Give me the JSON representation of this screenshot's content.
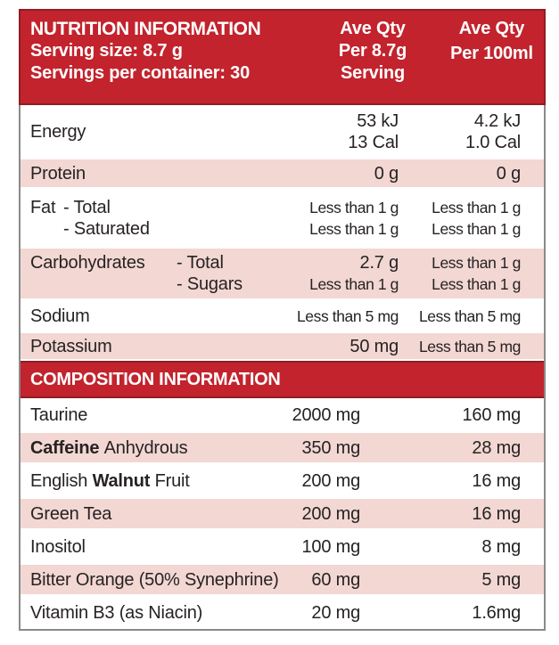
{
  "colors": {
    "red": "#c2232d",
    "red_dark": "#8e1e26",
    "pink": "#f2d7d3",
    "text": "#272223",
    "border_gray": "#8a8a8a"
  },
  "header": {
    "title": "NUTRITION INFORMATION",
    "serving_size": "Serving size: 8.7 g",
    "servings_per_container": "Servings per container: 30",
    "per_serving_heading": [
      "Ave Qty",
      "Per 8.7g",
      "Serving"
    ],
    "per_100ml_heading": [
      "Ave Qty",
      "Per 100ml"
    ]
  },
  "nutrition_rows": [
    {
      "label": "Energy",
      "per_serving": [
        "53 kJ",
        "13 Cal"
      ],
      "per_100ml": [
        "4.2 kJ",
        "1.0 Cal"
      ],
      "bg": "white"
    },
    {
      "label": "Protein",
      "per_serving": [
        "0 g"
      ],
      "per_100ml": [
        "0 g"
      ],
      "bg": "pink"
    },
    {
      "label": "Fat",
      "sublabels": [
        "- Total",
        "- Saturated"
      ],
      "indent": "near",
      "per_serving": [
        "Less than 1 g",
        "Less than 1 g"
      ],
      "per_100ml": [
        "Less than 1 g",
        "Less than 1 g"
      ],
      "bg": "white"
    },
    {
      "label": "Carbohydrates",
      "sublabels": [
        "- Total",
        "- Sugars"
      ],
      "indent": "far",
      "per_serving": [
        "2.7 g",
        "Less than 1 g"
      ],
      "per_100ml": [
        "Less than 1 g",
        "Less than 1 g"
      ],
      "bg": "pink"
    },
    {
      "label": "Sodium",
      "per_serving": [
        "Less than 5 mg"
      ],
      "per_100ml": [
        "Less than 5 mg"
      ],
      "bg": "white"
    },
    {
      "label": "Potassium",
      "per_serving": [
        "50 mg"
      ],
      "per_100ml": [
        "Less than 5 mg"
      ],
      "bg": "pink"
    }
  ],
  "composition": {
    "title": "COMPOSITION INFORMATION",
    "rows": [
      {
        "label": [
          {
            "t": "Taurine"
          }
        ],
        "per_serving": "2000 mg",
        "per_100ml": "160 mg",
        "bg": "white"
      },
      {
        "label": [
          {
            "t": "Caffeine ",
            "b": true
          },
          {
            "t": "Anhydrous"
          }
        ],
        "per_serving": "350 mg",
        "per_100ml": "28 mg",
        "bg": "pink"
      },
      {
        "label": [
          {
            "t": "English "
          },
          {
            "t": "Walnut ",
            "b": true
          },
          {
            "t": "Fruit"
          }
        ],
        "per_serving": "200 mg",
        "per_100ml": "16 mg",
        "bg": "white"
      },
      {
        "label": [
          {
            "t": "Green Tea"
          }
        ],
        "per_serving": "200 mg",
        "per_100ml": "16 mg",
        "bg": "pink"
      },
      {
        "label": [
          {
            "t": "Inositol"
          }
        ],
        "per_serving": "100 mg",
        "per_100ml": "8 mg",
        "bg": "white"
      },
      {
        "label": [
          {
            "t": "Bitter Orange (50% Synephrine)"
          }
        ],
        "per_serving": "60 mg",
        "per_100ml": "5 mg",
        "bg": "pink"
      },
      {
        "label": [
          {
            "t": "Vitamin B3 (as Niacin)"
          }
        ],
        "per_serving": "20 mg",
        "per_100ml": "1.6mg",
        "bg": "white"
      }
    ]
  }
}
